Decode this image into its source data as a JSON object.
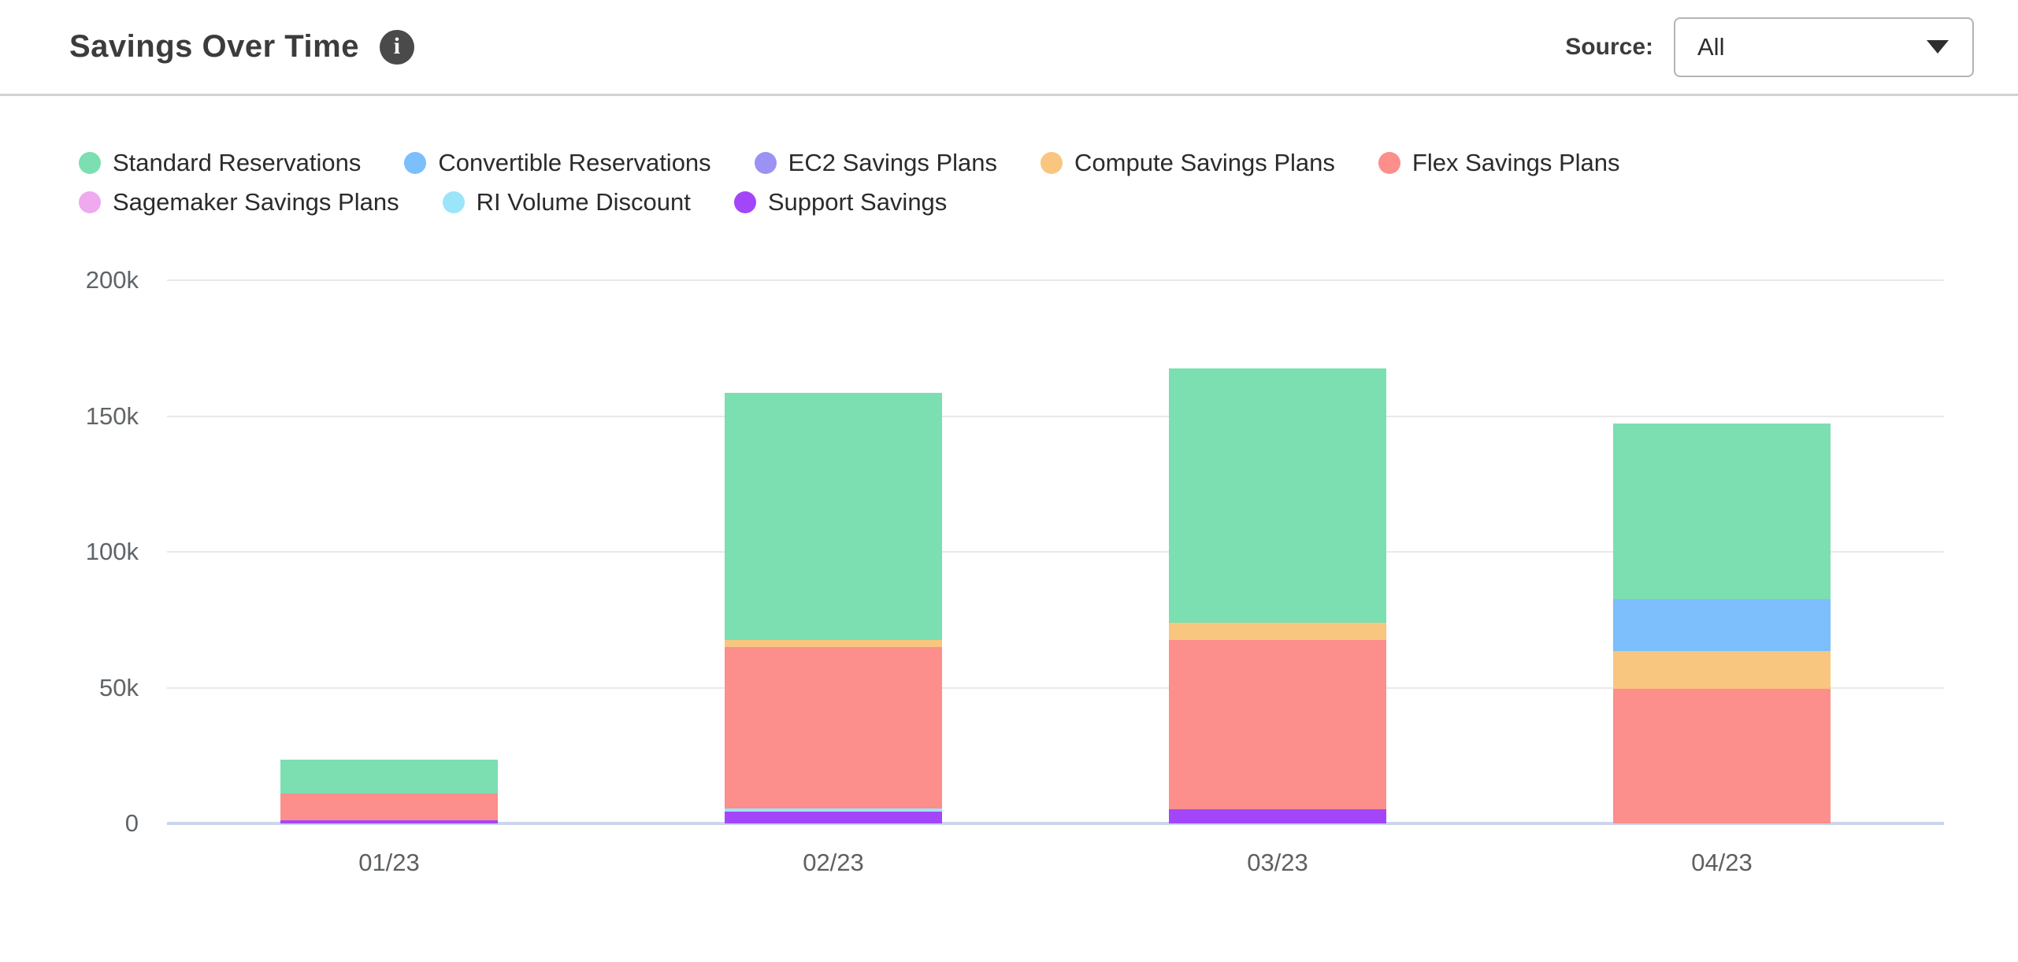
{
  "header": {
    "title": "Savings Over Time",
    "info_glyph": "i"
  },
  "source": {
    "label": "Source:",
    "value": "All"
  },
  "chart_data": {
    "type": "bar",
    "stacked": true,
    "title": "Savings Over Time",
    "xlabel": "",
    "ylabel": "",
    "values_unit": "thousands",
    "ylim": [
      0,
      200
    ],
    "grid": true,
    "legend_position": "top",
    "categories": [
      "01/23",
      "02/23",
      "03/23",
      "04/23"
    ],
    "y_ticks": [
      {
        "value": 0,
        "label": "0"
      },
      {
        "value": 50,
        "label": "50k"
      },
      {
        "value": 100,
        "label": "100k"
      },
      {
        "value": 150,
        "label": "150k"
      },
      {
        "value": 200,
        "label": "200k"
      }
    ],
    "series": [
      {
        "name": "Standard Reservations",
        "color": "#7BDFB1",
        "values": [
          12.5,
          91,
          93.5,
          64.5
        ]
      },
      {
        "name": "Convertible Reservations",
        "color": "#7DBEFC",
        "values": [
          0,
          0,
          0,
          19.3
        ]
      },
      {
        "name": "EC2 Savings Plans",
        "color": "#9C92F4",
        "values": [
          0,
          0,
          0,
          0
        ]
      },
      {
        "name": "Compute Savings Plans",
        "color": "#F8C67E",
        "values": [
          0,
          2.5,
          6.5,
          13.8
        ]
      },
      {
        "name": "Flex Savings Plans",
        "color": "#FC8E8B",
        "values": [
          9.8,
          59.5,
          62.4,
          49.6
        ]
      },
      {
        "name": "Sagemaker Savings Plans",
        "color": "#EFAAEF",
        "values": [
          0,
          0,
          0,
          0
        ]
      },
      {
        "name": "RI Volume Discount",
        "color": "#9BE5F8",
        "values": [
          0,
          1.1,
          0,
          0
        ]
      },
      {
        "name": "Support Savings",
        "color": "#A346F9",
        "values": [
          1.2,
          4.4,
          5.1,
          0
        ]
      }
    ],
    "stack_order_bottom_to_top": [
      "Support Savings",
      "RI Volume Discount",
      "Sagemaker Savings Plans",
      "Flex Savings Plans",
      "Compute Savings Plans",
      "EC2 Savings Plans",
      "Convertible Reservations",
      "Standard Reservations"
    ]
  }
}
